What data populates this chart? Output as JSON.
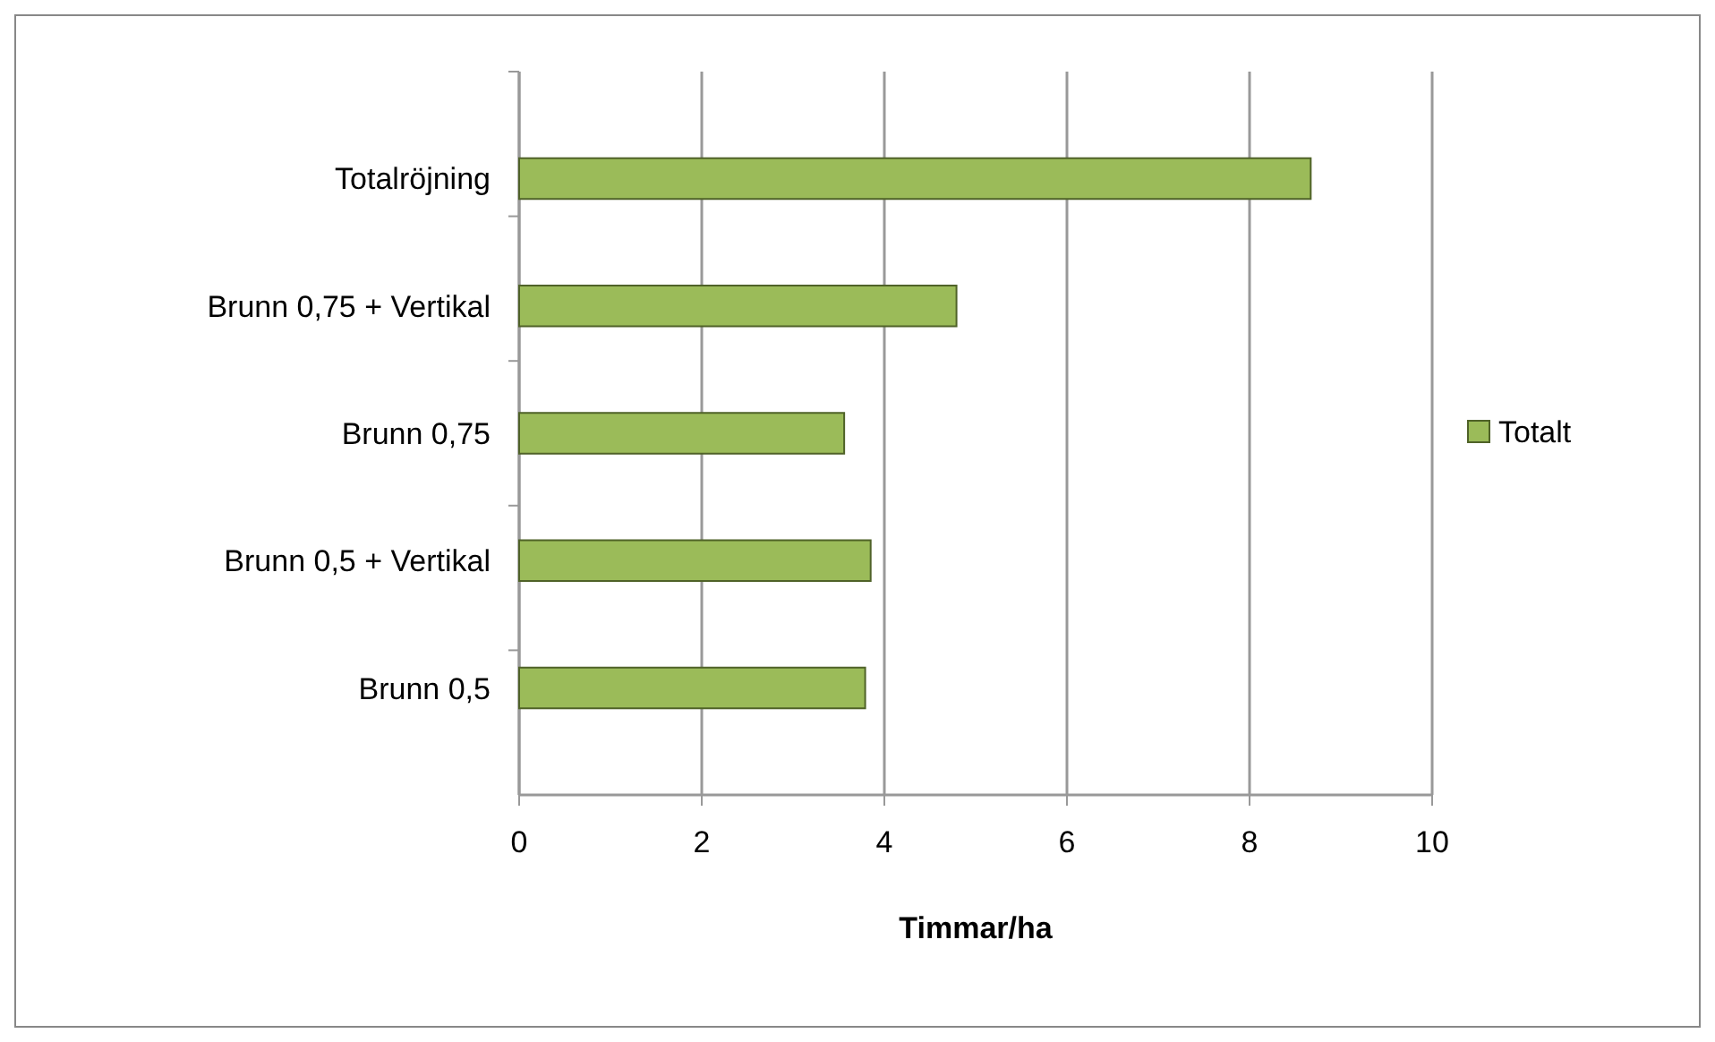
{
  "chart_data": {
    "type": "bar",
    "orientation": "horizontal",
    "xlabel": "Timmar/ha",
    "categories": [
      "Totalröjning",
      "Brunn 0,75 + Vertikal",
      "Brunn 0,75",
      "Brunn 0,5 + Vertikal",
      "Brunn 0,5"
    ],
    "series": [
      {
        "name": "Totalt",
        "color": "#9bbb59",
        "values": [
          8.67,
          4.79,
          3.56,
          3.85,
          3.79
        ]
      }
    ],
    "xlim": [
      0,
      10
    ],
    "xticks": [
      0,
      2,
      4,
      6,
      8,
      10
    ],
    "grid": "x",
    "legend": "right"
  }
}
